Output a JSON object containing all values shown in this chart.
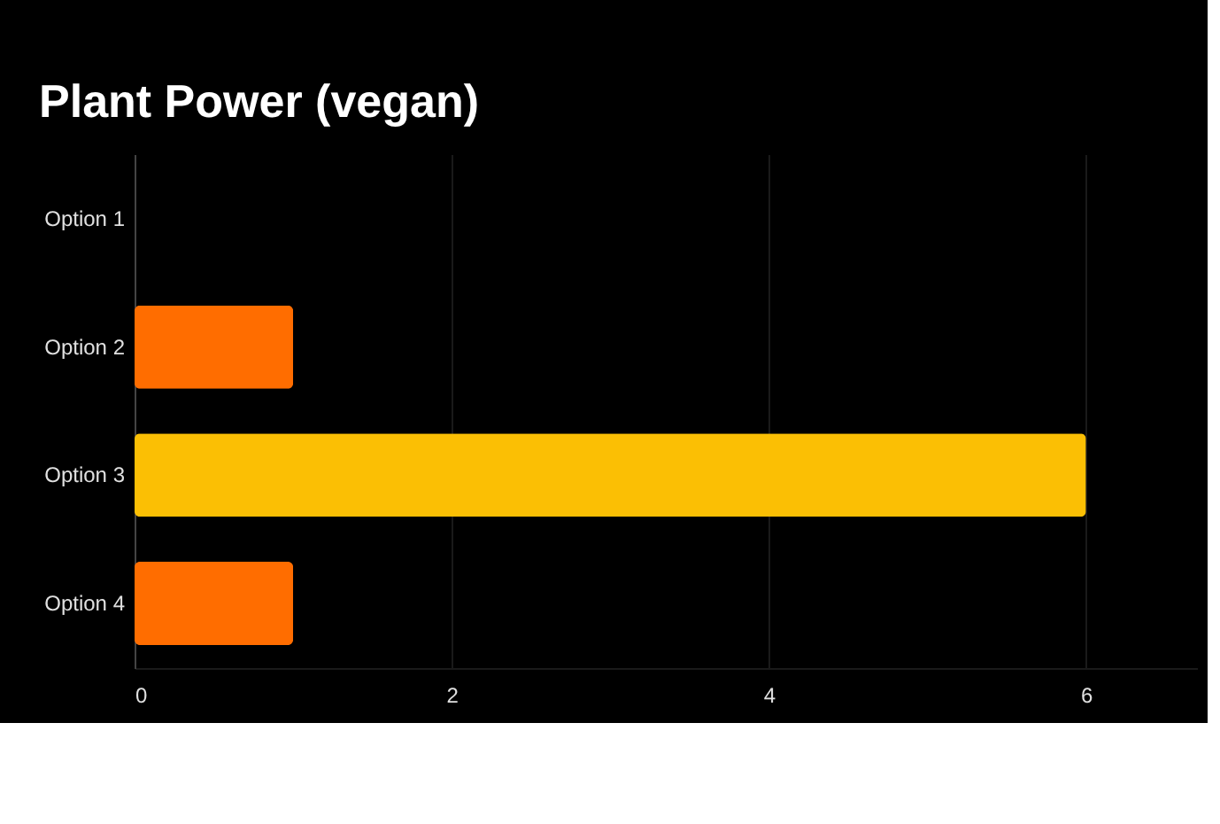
{
  "chart_data": {
    "type": "bar",
    "orientation": "horizontal",
    "title": "Plant Power (vegan)",
    "categories": [
      "Option 1",
      "Option 2",
      "Option 3",
      "Option 4"
    ],
    "values": [
      0,
      1,
      6,
      1
    ],
    "colors": [
      "#ff6d00",
      "#ff6d00",
      "#fbbf04",
      "#ff6d00"
    ],
    "xlim": [
      0,
      6.7
    ],
    "xticks": [
      0,
      2,
      4,
      6
    ],
    "grid": "x"
  }
}
